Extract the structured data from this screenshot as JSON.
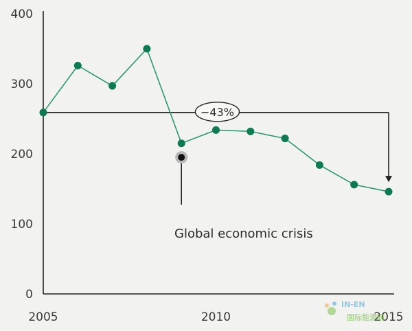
{
  "chart_data": {
    "type": "line",
    "x": [
      2005,
      2006,
      2007,
      2008,
      2009,
      2010,
      2011,
      2012,
      2013,
      2014,
      2015
    ],
    "series": [
      {
        "values": [
          259,
          326,
          297,
          350,
          215,
          234,
          232,
          222,
          184,
          156,
          146
        ]
      }
    ],
    "xlim": [
      2005,
      2015
    ],
    "ylim": [
      0,
      400
    ],
    "x_ticks": [
      "2005",
      "2010",
      "2015"
    ],
    "y_ticks": [
      "0",
      "100",
      "200",
      "300",
      "400"
    ],
    "title": "",
    "xlabel": "",
    "ylabel": "",
    "grid": false,
    "colors": {
      "series": "#2a9a6e",
      "marker": "#0d7a50",
      "axis": "#222222",
      "text": "#3a3a3a"
    },
    "annotations": {
      "change": {
        "label": "−43%",
        "from_x": 2005,
        "to_x": 2015,
        "level_y": 259
      },
      "event": {
        "label": "Global economic crisis",
        "x": 2009,
        "y": 195
      }
    }
  },
  "watermark": {
    "line1": "IN-EN",
    "line2": "国际能源网",
    "colors": {
      "green": "#7cc24a",
      "orange": "#f2a33a",
      "blue": "#4aa3d8"
    }
  }
}
